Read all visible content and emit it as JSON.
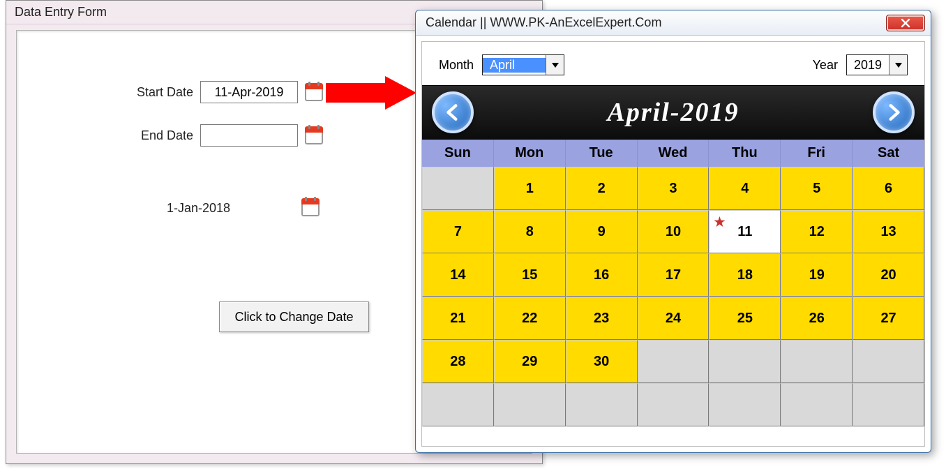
{
  "form": {
    "title": "Data Entry Form",
    "start_label": "Start Date",
    "start_value": "11-Apr-2019",
    "end_label": "End Date",
    "end_value": "",
    "loose_date": "1-Jan-2018",
    "change_btn": "Click to Change Date"
  },
  "arrow": {
    "color": "#ff0000"
  },
  "calendar": {
    "title": "Calendar || WWW.PK-AnExcelExpert.Com",
    "month_label": "Month",
    "month_value": "April",
    "year_label": "Year",
    "year_value": "2019",
    "banner": "April-2019",
    "dow": [
      "Sun",
      "Mon",
      "Tue",
      "Wed",
      "Thu",
      "Fri",
      "Sat"
    ],
    "colors": {
      "banner_bg": "#111111",
      "dow_bg": "#9aa3e0",
      "day_fill": "#ffdb00",
      "day_empty": "#d9d9d9",
      "today_bg": "#ffffff",
      "star": "#c9302c"
    },
    "first_day_col": 1,
    "days_in_month": 30,
    "today": 11,
    "rows": 6
  }
}
